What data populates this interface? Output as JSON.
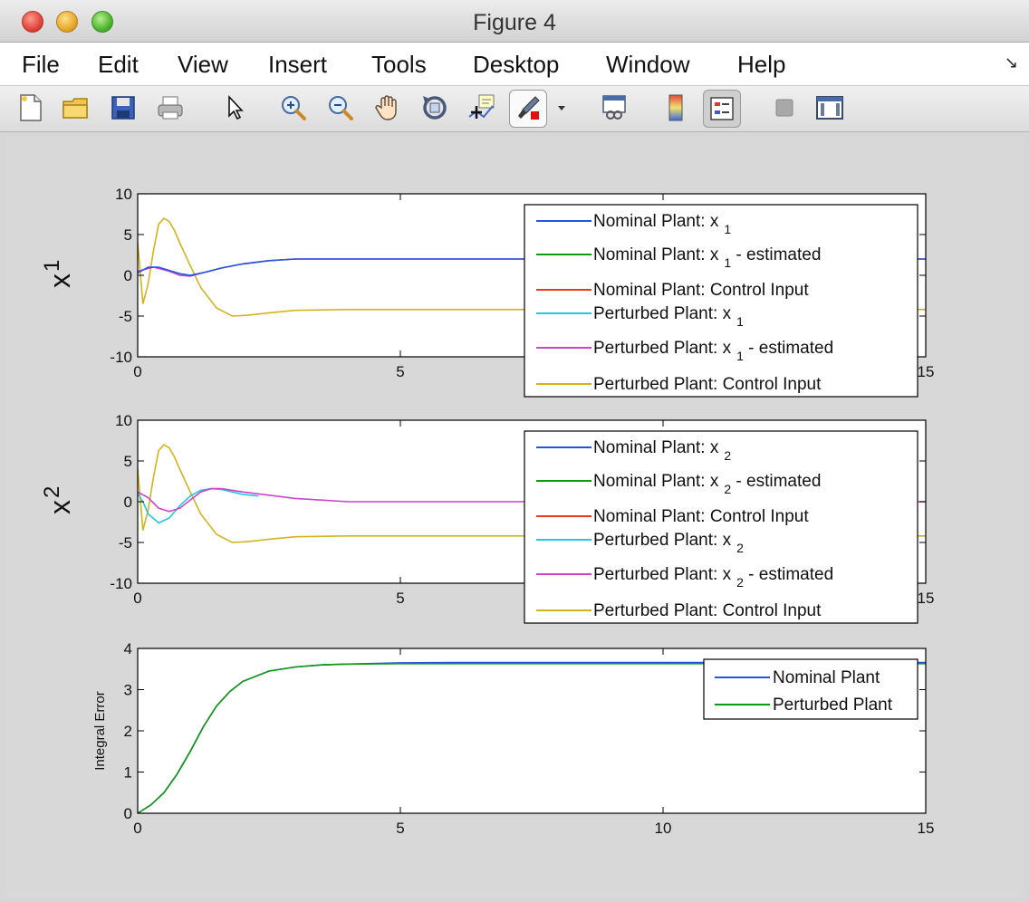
{
  "window": {
    "title": "Figure 4"
  },
  "menu": [
    "File",
    "Edit",
    "View",
    "Insert",
    "Tools",
    "Desktop",
    "Window",
    "Help"
  ],
  "toolbar": [
    "new-figure-icon",
    "open-file-icon",
    "save-icon",
    "print-icon",
    "pointer-icon",
    "zoom-in-icon",
    "zoom-out-icon",
    "pan-hand-icon",
    "rotate-3d-icon",
    "data-cursor-icon",
    "brush-icon",
    "dropdown-arrow-icon",
    "link-plot-icon",
    "colorbar-icon",
    "legend-icon",
    "hide-plot-tools-icon",
    "show-plot-tools-icon"
  ],
  "chart_data": [
    {
      "type": "line",
      "ylabel_main": "x",
      "ylabel_sub": "1",
      "xlim": [
        0,
        15
      ],
      "ylim": [
        -10,
        10
      ],
      "xticks": [
        "0",
        "5",
        "10",
        "15"
      ],
      "yticks": [
        "10",
        "5",
        "0",
        "-5",
        "-10"
      ],
      "legend": {
        "placement": "top-right",
        "entries": [
          {
            "main": "Nominal Plant: x",
            "sub": "1",
            "after": "",
            "color": "#2255dd"
          },
          {
            "main": "Nominal Plant: x",
            "sub": "1",
            "after": " - estimated",
            "color": "#119911"
          },
          {
            "main": "Nominal Plant: Control Input",
            "sub": "",
            "after": "",
            "color": "#e83a1a"
          },
          {
            "main": "Perturbed Plant: x",
            "sub": "1",
            "after": "",
            "color": "#22c8dd"
          },
          {
            "main": "Perturbed Plant: x",
            "sub": "1",
            "after": " - estimated",
            "color": "#cc44cc"
          },
          {
            "main": "Perturbed Plant: Control Input",
            "sub": "",
            "after": "",
            "color": "#d4b41c"
          }
        ]
      },
      "series": [
        {
          "color": "#d4b41c",
          "x": [
            0,
            0.1,
            0.2,
            0.3,
            0.4,
            0.5,
            0.6,
            0.7,
            0.8,
            1.0,
            1.2,
            1.5,
            1.8,
            2.1,
            2.5,
            3,
            4,
            5,
            6,
            7,
            8,
            9,
            10,
            11,
            12,
            13,
            14,
            15
          ],
          "y": [
            4,
            -3.5,
            -1,
            3,
            6.3,
            7,
            6.6,
            5.5,
            4,
            1.2,
            -1.5,
            -4,
            -5,
            -4.9,
            -4.6,
            -4.3,
            -4.2,
            -4.2,
            -4.2,
            -4.2,
            -4.2,
            -4.2,
            -4.2,
            -4.2,
            -4.2,
            -4.2,
            -4.2,
            -4.2
          ]
        },
        {
          "color": "#cc44cc",
          "x": [
            0,
            0.3,
            0.6,
            0.8,
            1.0,
            1.3,
            1.6,
            2,
            2.5,
            3,
            3.5,
            4,
            5,
            6,
            7,
            8,
            9,
            10,
            11,
            12,
            13,
            14,
            15
          ],
          "y": [
            0.5,
            1,
            0.5,
            0,
            -0.1,
            0.4,
            0.9,
            1.4,
            1.8,
            2,
            2,
            2,
            2,
            2,
            2,
            2,
            2,
            2,
            2,
            2,
            2,
            2,
            2
          ]
        },
        {
          "color": "#2255dd",
          "x": [
            0,
            0.2,
            0.4,
            0.6,
            0.8,
            1.0,
            1.3,
            1.6,
            2,
            2.5,
            3,
            4,
            5,
            6,
            7,
            8,
            9,
            10,
            11,
            12,
            13,
            14,
            15
          ],
          "y": [
            0.3,
            1,
            1,
            0.6,
            0.2,
            0,
            0.4,
            0.9,
            1.4,
            1.8,
            2,
            2,
            2,
            2,
            2,
            2,
            2,
            2,
            2,
            2,
            2,
            2,
            2
          ]
        }
      ]
    },
    {
      "type": "line",
      "ylabel_main": "x",
      "ylabel_sub": "2",
      "xlim": [
        0,
        15
      ],
      "ylim": [
        -10,
        10
      ],
      "xticks": [
        "0",
        "5",
        "10",
        "15"
      ],
      "yticks": [
        "10",
        "5",
        "0",
        "-5",
        "-10"
      ],
      "legend": {
        "placement": "top-right",
        "entries": [
          {
            "main": "Nominal Plant: x",
            "sub": "2",
            "after": "",
            "color": "#2255dd"
          },
          {
            "main": "Nominal Plant: x",
            "sub": "2",
            "after": " - estimated",
            "color": "#119911"
          },
          {
            "main": "Nominal Plant: Control Input",
            "sub": "",
            "after": "",
            "color": "#e83a1a"
          },
          {
            "main": "Perturbed Plant: x",
            "sub": "2",
            "after": "",
            "color": "#22c8dd"
          },
          {
            "main": "Perturbed Plant: x",
            "sub": "2",
            "after": " - estimated",
            "color": "#cc44cc"
          },
          {
            "main": "Perturbed Plant: Control Input",
            "sub": "",
            "after": "",
            "color": "#d4b41c"
          }
        ]
      },
      "series": [
        {
          "color": "#d4b41c",
          "x": [
            0,
            0.1,
            0.2,
            0.3,
            0.4,
            0.5,
            0.6,
            0.7,
            0.8,
            1.0,
            1.2,
            1.5,
            1.8,
            2.1,
            2.5,
            3,
            4,
            5,
            6,
            7,
            8,
            9,
            10,
            11,
            12,
            13,
            14,
            15
          ],
          "y": [
            4,
            -3.5,
            -1,
            3,
            6.3,
            7,
            6.6,
            5.5,
            4,
            1.2,
            -1.5,
            -4,
            -5,
            -4.9,
            -4.6,
            -4.3,
            -4.2,
            -4.2,
            -4.2,
            -4.2,
            -4.2,
            -4.2,
            -4.2,
            -4.2,
            -4.2,
            -4.2,
            -4.2,
            -4.2
          ]
        },
        {
          "color": "#22c8dd",
          "x": [
            0,
            0.1,
            0.2,
            0.4,
            0.6,
            0.8,
            1.0,
            1.2,
            1.4,
            1.6,
            1.8,
            2,
            2.3
          ],
          "y": [
            1,
            0,
            -1.5,
            -2.6,
            -2,
            -0.5,
            0.7,
            1.4,
            1.6,
            1.5,
            1.2,
            0.9,
            0.7
          ]
        },
        {
          "color": "#cc44cc",
          "x": [
            0,
            0.2,
            0.4,
            0.6,
            0.8,
            1.0,
            1.2,
            1.4,
            1.6,
            2,
            2.5,
            3,
            3.5,
            4,
            5,
            6,
            7,
            8,
            9,
            10,
            11,
            12,
            13,
            14,
            15
          ],
          "y": [
            1.2,
            0.5,
            -0.8,
            -1.2,
            -0.8,
            0.2,
            1.2,
            1.6,
            1.6,
            1.2,
            0.8,
            0.4,
            0.2,
            0,
            0,
            0,
            0,
            0,
            0,
            0,
            0,
            0,
            0,
            0,
            0
          ]
        }
      ]
    },
    {
      "type": "line",
      "ylabel": "Integral Error",
      "xlim": [
        0,
        15
      ],
      "ylim": [
        0,
        4
      ],
      "xticks": [
        "0",
        "5",
        "10",
        "15"
      ],
      "yticks": [
        "4",
        "3",
        "2",
        "1",
        "0"
      ],
      "legend": {
        "placement": "top-right",
        "entries": [
          {
            "main": "Nominal Plant",
            "sub": "",
            "after": "",
            "color": "#2255dd"
          },
          {
            "main": "Perturbed Plant",
            "sub": "",
            "after": "",
            "color": "#119911"
          }
        ]
      },
      "series": [
        {
          "color": "#2255dd",
          "x": [
            0,
            0.25,
            0.5,
            0.75,
            1.0,
            1.25,
            1.5,
            1.75,
            2,
            2.5,
            3,
            3.5,
            4,
            5,
            6,
            7,
            8,
            9,
            10,
            11,
            12,
            13,
            14,
            15
          ],
          "y": [
            0,
            0.2,
            0.5,
            0.95,
            1.5,
            2.1,
            2.6,
            2.95,
            3.2,
            3.45,
            3.55,
            3.6,
            3.62,
            3.65,
            3.66,
            3.66,
            3.66,
            3.66,
            3.66,
            3.66,
            3.66,
            3.66,
            3.66,
            3.66
          ]
        },
        {
          "color": "#119911",
          "x": [
            0,
            0.25,
            0.5,
            0.75,
            1.0,
            1.25,
            1.5,
            1.75,
            2,
            2.5,
            3,
            3.5,
            4,
            5,
            6,
            7,
            8,
            9,
            10,
            11,
            12,
            13,
            14,
            15
          ],
          "y": [
            0,
            0.2,
            0.5,
            0.95,
            1.5,
            2.1,
            2.6,
            2.95,
            3.2,
            3.45,
            3.55,
            3.6,
            3.62,
            3.63,
            3.63,
            3.63,
            3.63,
            3.63,
            3.63,
            3.63,
            3.63,
            3.63,
            3.63,
            3.63
          ]
        }
      ]
    }
  ]
}
